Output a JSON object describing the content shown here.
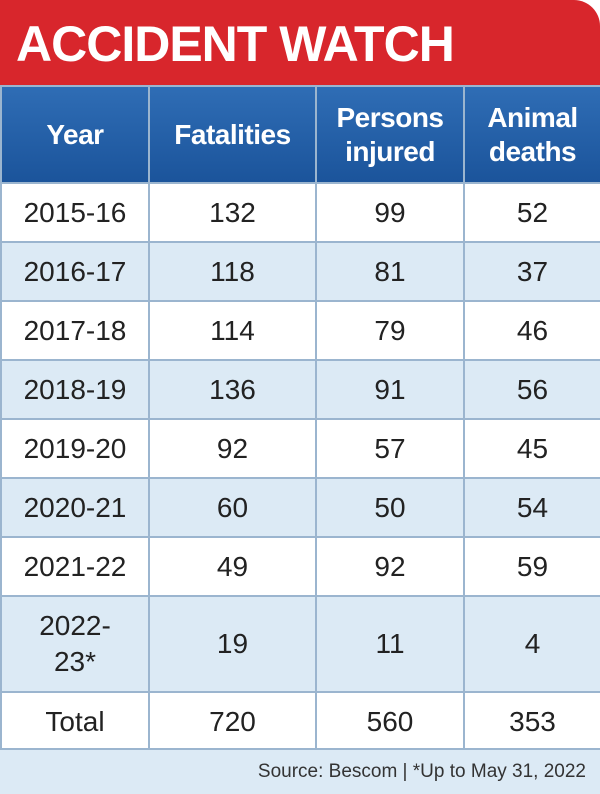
{
  "header": {
    "title": "ACCIDENT WATCH"
  },
  "table": {
    "columns": [
      "Year",
      "Fatalities",
      "Persons injured",
      "Animal deaths"
    ],
    "rows": [
      [
        "2015-16",
        132,
        99,
        52
      ],
      [
        "2016-17",
        118,
        81,
        37
      ],
      [
        "2017-18",
        114,
        79,
        46
      ],
      [
        "2018-19",
        136,
        91,
        56
      ],
      [
        "2019-20",
        92,
        57,
        45
      ],
      [
        "2020-21",
        60,
        50,
        54
      ],
      [
        "2021-22",
        49,
        92,
        59
      ],
      [
        "2022-23*",
        19,
        11,
        4
      ]
    ],
    "total": [
      "Total",
      720,
      560,
      353
    ]
  },
  "footer": {
    "source": "Source: Bescom | *Up to May 31, 2022"
  }
}
